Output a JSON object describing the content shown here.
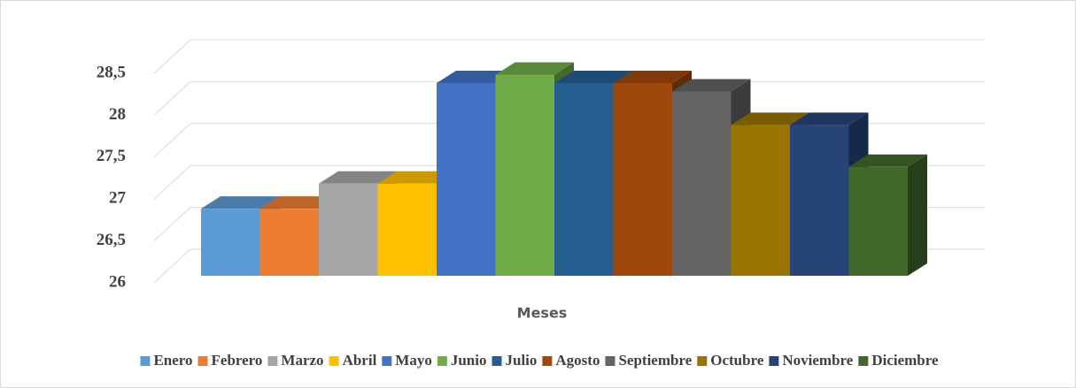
{
  "chart_data": {
    "type": "bar3d",
    "x_label": "Meses",
    "series": [
      {
        "name": "Enero",
        "color": "#5b9bd5",
        "values": [
          26.8
        ]
      },
      {
        "name": "Febrero",
        "color": "#ed7d31",
        "values": [
          26.8
        ]
      },
      {
        "name": "Marzo",
        "color": "#a5a5a5",
        "values": [
          27.1
        ]
      },
      {
        "name": "Abril",
        "color": "#ffc000",
        "values": [
          27.1
        ]
      },
      {
        "name": "Mayo",
        "color": "#4472c4",
        "values": [
          28.3
        ]
      },
      {
        "name": "Junio",
        "color": "#70ad47",
        "values": [
          28.4
        ]
      },
      {
        "name": "Julio",
        "color": "#255e91",
        "values": [
          28.3
        ]
      },
      {
        "name": "Agosto",
        "color": "#9e480e",
        "values": [
          28.3
        ]
      },
      {
        "name": "Septiembre",
        "color": "#636363",
        "values": [
          28.2
        ]
      },
      {
        "name": "Octubre",
        "color": "#997300",
        "values": [
          27.8
        ]
      },
      {
        "name": "Noviembre",
        "color": "#264478",
        "values": [
          27.8
        ]
      },
      {
        "name": "Diciembre",
        "color": "#43682b",
        "values": [
          27.3
        ]
      }
    ],
    "ylim": [
      26,
      28.5
    ],
    "yticks": [
      26,
      {
        "value": 26.5,
        "label": "26,5"
      },
      27,
      {
        "value": 27.5,
        "label": "27,5"
      },
      28,
      {
        "value": 28.5,
        "label": "28,5"
      }
    ],
    "grid": true,
    "legend": "bottom"
  }
}
